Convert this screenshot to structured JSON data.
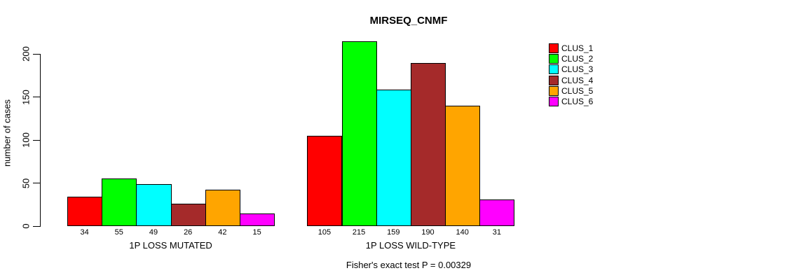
{
  "figure": {
    "background": "#ffffff",
    "text_color": "#000000",
    "axis_color": "#000000"
  },
  "chart_data": {
    "type": "bar",
    "title": "MIRSEQ_CNMF",
    "ylabel": "number of cases",
    "xlabel": "",
    "annotation": "Fisher's exact test P = 0.00329",
    "categories": [
      "1P LOSS MUTATED",
      "1P LOSS WILD-TYPE"
    ],
    "series": [
      {
        "name": "CLUS_1",
        "color": "#ff0000",
        "values": [
          34,
          105
        ]
      },
      {
        "name": "CLUS_2",
        "color": "#00ff00",
        "values": [
          55,
          215
        ]
      },
      {
        "name": "CLUS_3",
        "color": "#00ffff",
        "values": [
          49,
          159
        ]
      },
      {
        "name": "CLUS_4",
        "color": "#a52a2a",
        "values": [
          26,
          190
        ]
      },
      {
        "name": "CLUS_5",
        "color": "#ffa500",
        "values": [
          42,
          140
        ]
      },
      {
        "name": "CLUS_6",
        "color": "#ff00ff",
        "values": [
          15,
          31
        ]
      }
    ],
    "yticks": [
      0,
      50,
      100,
      150,
      200
    ],
    "ylim": [
      0,
      220
    ],
    "grid": false,
    "bar_value_labels": true,
    "legend": {
      "position": "top-right",
      "entries": [
        "CLUS_1",
        "CLUS_2",
        "CLUS_3",
        "CLUS_4",
        "CLUS_5",
        "CLUS_6"
      ]
    }
  }
}
